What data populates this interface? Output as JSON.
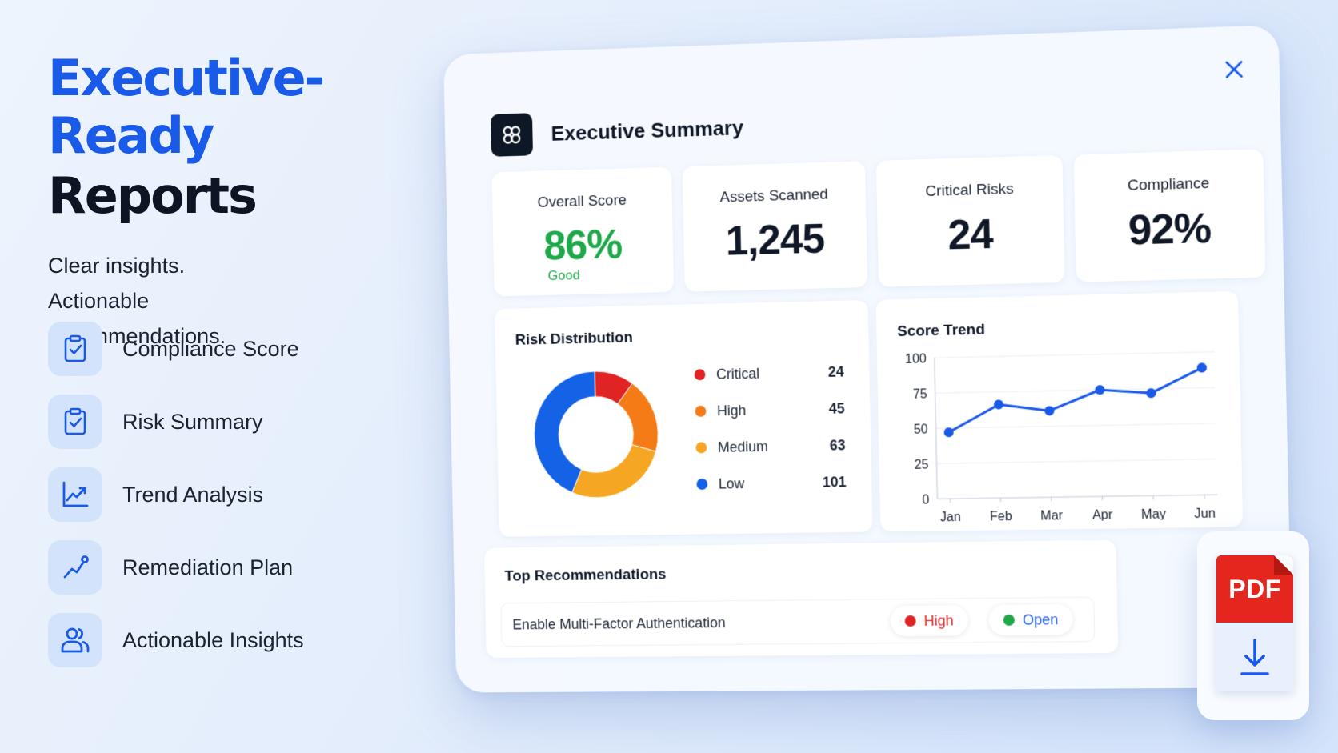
{
  "hero": {
    "title_line1": "Executive-Ready",
    "title_line2": "Reports",
    "subtitle_lines": [
      "Clear insights.",
      "Actionable",
      "recommendations."
    ]
  },
  "features": [
    {
      "label": "Compliance Score",
      "icon": "clipboard-check-icon"
    },
    {
      "label": "Risk Summary",
      "icon": "clipboard-check-icon"
    },
    {
      "label": "Trend Analysis",
      "icon": "line-chart-icon"
    },
    {
      "label": "Remediation Plan",
      "icon": "trend-up-icon"
    },
    {
      "label": "Actionable Insights",
      "icon": "users-icon"
    }
  ],
  "dashboard": {
    "title": "Executive Summary",
    "kpis": [
      {
        "label": "Overall Score",
        "value": "86%",
        "status": "Good"
      },
      {
        "label": "Assets Scanned",
        "value": "1,245"
      },
      {
        "label": "Critical Risks",
        "value": "24"
      },
      {
        "label": "Compliance",
        "value": "92%"
      }
    ],
    "risk_distribution": {
      "title": "Risk Distribution",
      "items": [
        {
          "label": "Critical",
          "value": "24",
          "color": "#e02424"
        },
        {
          "label": "High",
          "value": "45",
          "color": "#f47b16"
        },
        {
          "label": "Medium",
          "value": "63",
          "color": "#f5a623"
        },
        {
          "label": "Low",
          "value": "101",
          "color": "#1463e6"
        }
      ]
    },
    "score_trend": {
      "title": "Score Trend"
    },
    "recommendations": {
      "title": "Top Recommendations",
      "items": [
        {
          "text": "Enable Multi-Factor Authentication",
          "severity": "High",
          "status": "Open"
        }
      ]
    }
  },
  "pdf_badge": {
    "label": "PDF"
  },
  "colors": {
    "accent": "#1a5ae8",
    "good": "#1ea84a",
    "high": "#e02424",
    "open": "#1ea84a",
    "pdf": "#e5261f"
  },
  "chart_data": [
    {
      "type": "pie",
      "title": "Risk Distribution",
      "categories": [
        "Critical",
        "High",
        "Medium",
        "Low"
      ],
      "values": [
        24,
        45,
        63,
        101
      ]
    },
    {
      "type": "line",
      "title": "Score Trend",
      "categories": [
        "Jan",
        "Feb",
        "Mar",
        "Apr",
        "May",
        "Jun"
      ],
      "values": [
        47,
        66,
        61,
        75,
        72,
        89
      ],
      "ylim": [
        0,
        100
      ],
      "yticks": [
        "0",
        "25",
        "50",
        "75",
        "100"
      ],
      "grid": true
    }
  ]
}
